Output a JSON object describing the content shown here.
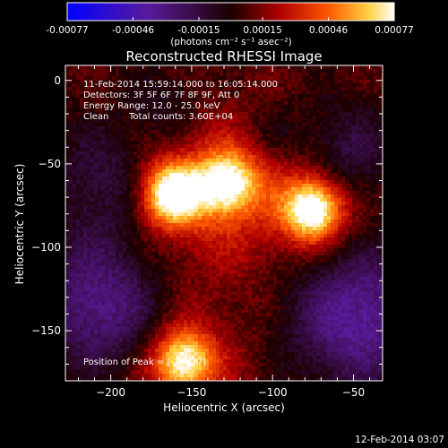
{
  "chart_data": {
    "type": "heatmap",
    "title": "Reconstructed RHESSI Image",
    "xlabel": "Heliocentric X (arcsec)",
    "ylabel": "Heliocentric Y (arcsec)",
    "xlim": [
      -228,
      -32
    ],
    "ylim": [
      -180,
      9
    ],
    "x_ticks": [
      -200,
      -150,
      -100,
      -50
    ],
    "y_ticks": [
      0,
      -50,
      -100,
      -150
    ],
    "colorbar": {
      "unit_label": "(photons cm⁻² s⁻¹ asec⁻²)",
      "range": [
        -0.00077,
        0.00077
      ],
      "ticks": [
        "-0.00077",
        "-0.00046",
        "-0.00015",
        "0.00015",
        "0.00046",
        "0.00077"
      ]
    },
    "annotations": {
      "time_range": "11-Feb-2014 15:59:14.000 to 16:05:14.000",
      "detectors": "Detectors: 3F 5F 6F 7F 8F 9F, Att 0",
      "energy_range": "Energy Range: 12.0 - 25.0 keV",
      "method": "Clean",
      "total_counts": "Total counts: 3.60E+04",
      "peak_label": "Position of Peak = [-75,-77]",
      "peak_x": -75,
      "peak_y": -77
    },
    "sources": [
      {
        "x": -162,
        "y": -68,
        "peak": 0.00077
      },
      {
        "x": -128,
        "y": -62,
        "peak": 0.0006
      },
      {
        "x": -75,
        "y": -77,
        "peak": 0.00077
      },
      {
        "x": -155,
        "y": -168,
        "peak": 0.00065
      }
    ],
    "footer_date": "12-Feb-2014 03:07"
  }
}
